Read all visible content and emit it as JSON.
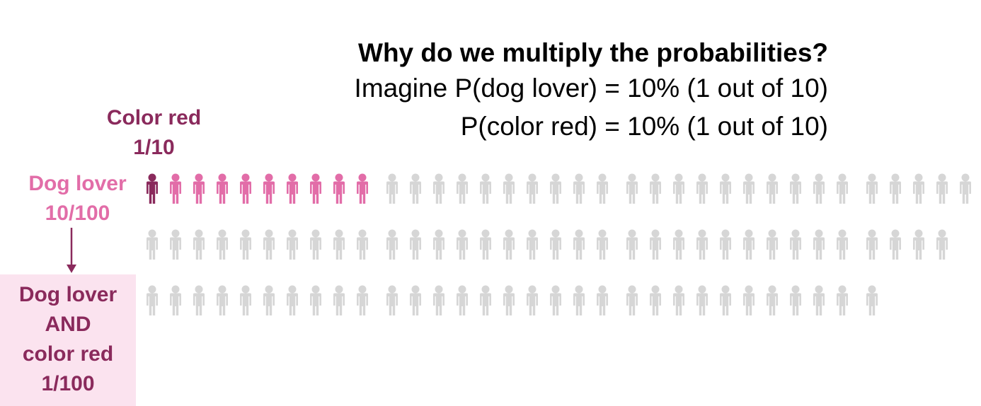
{
  "header": {
    "title": "Why do we multiply the probabilities?",
    "line1": "Imagine P(dog lover) = 10% (1 out of 10)",
    "line2": "P(color red) = 10% (1 out of 10)"
  },
  "labels": {
    "color_red": "Color red",
    "color_red_fraction": "1/10",
    "dog_lover": "Dog lover",
    "dog_lover_fraction": "10/100",
    "both_line1": "Dog lover",
    "both_line2": "AND",
    "both_line3": "color red",
    "both_fraction": "1/100"
  },
  "people": {
    "total": 100,
    "dog_lovers": 10,
    "dog_lovers_red": 1
  },
  "colors": {
    "red_dog_lover": "#8a2a5c",
    "dog_lover": "#e26da8",
    "other": "#d6d6d6",
    "highlight_box": "#fbe3ef"
  }
}
